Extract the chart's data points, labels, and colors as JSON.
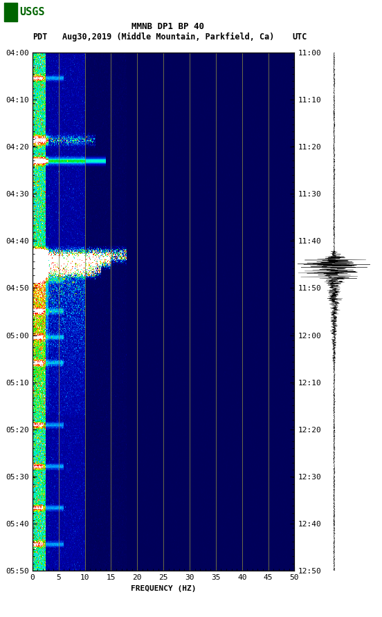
{
  "title_line1": "MMNB DP1 BP 40",
  "title_line2_pdt": "PDT",
  "title_line2_date": "Aug30,2019 (Middle Mountain, Parkfield, Ca)",
  "title_line2_utc": "UTC",
  "xlabel": "FREQUENCY (HZ)",
  "freq_min": 0,
  "freq_max": 50,
  "freq_ticks": [
    0,
    5,
    10,
    15,
    20,
    25,
    30,
    35,
    40,
    45,
    50
  ],
  "left_time_labels": [
    "04:00",
    "04:10",
    "04:20",
    "04:30",
    "04:40",
    "04:50",
    "05:00",
    "05:10",
    "05:20",
    "05:30",
    "05:40",
    "05:50"
  ],
  "right_time_labels": [
    "11:00",
    "11:10",
    "11:20",
    "11:30",
    "11:40",
    "11:50",
    "12:00",
    "12:10",
    "12:20",
    "12:30",
    "12:40",
    "12:50"
  ],
  "grid_color": "#888844",
  "grid_alpha": 0.8,
  "usgs_green": "#006400",
  "title_fontsize": 9,
  "tick_fontsize": 8,
  "label_fontsize": 8
}
